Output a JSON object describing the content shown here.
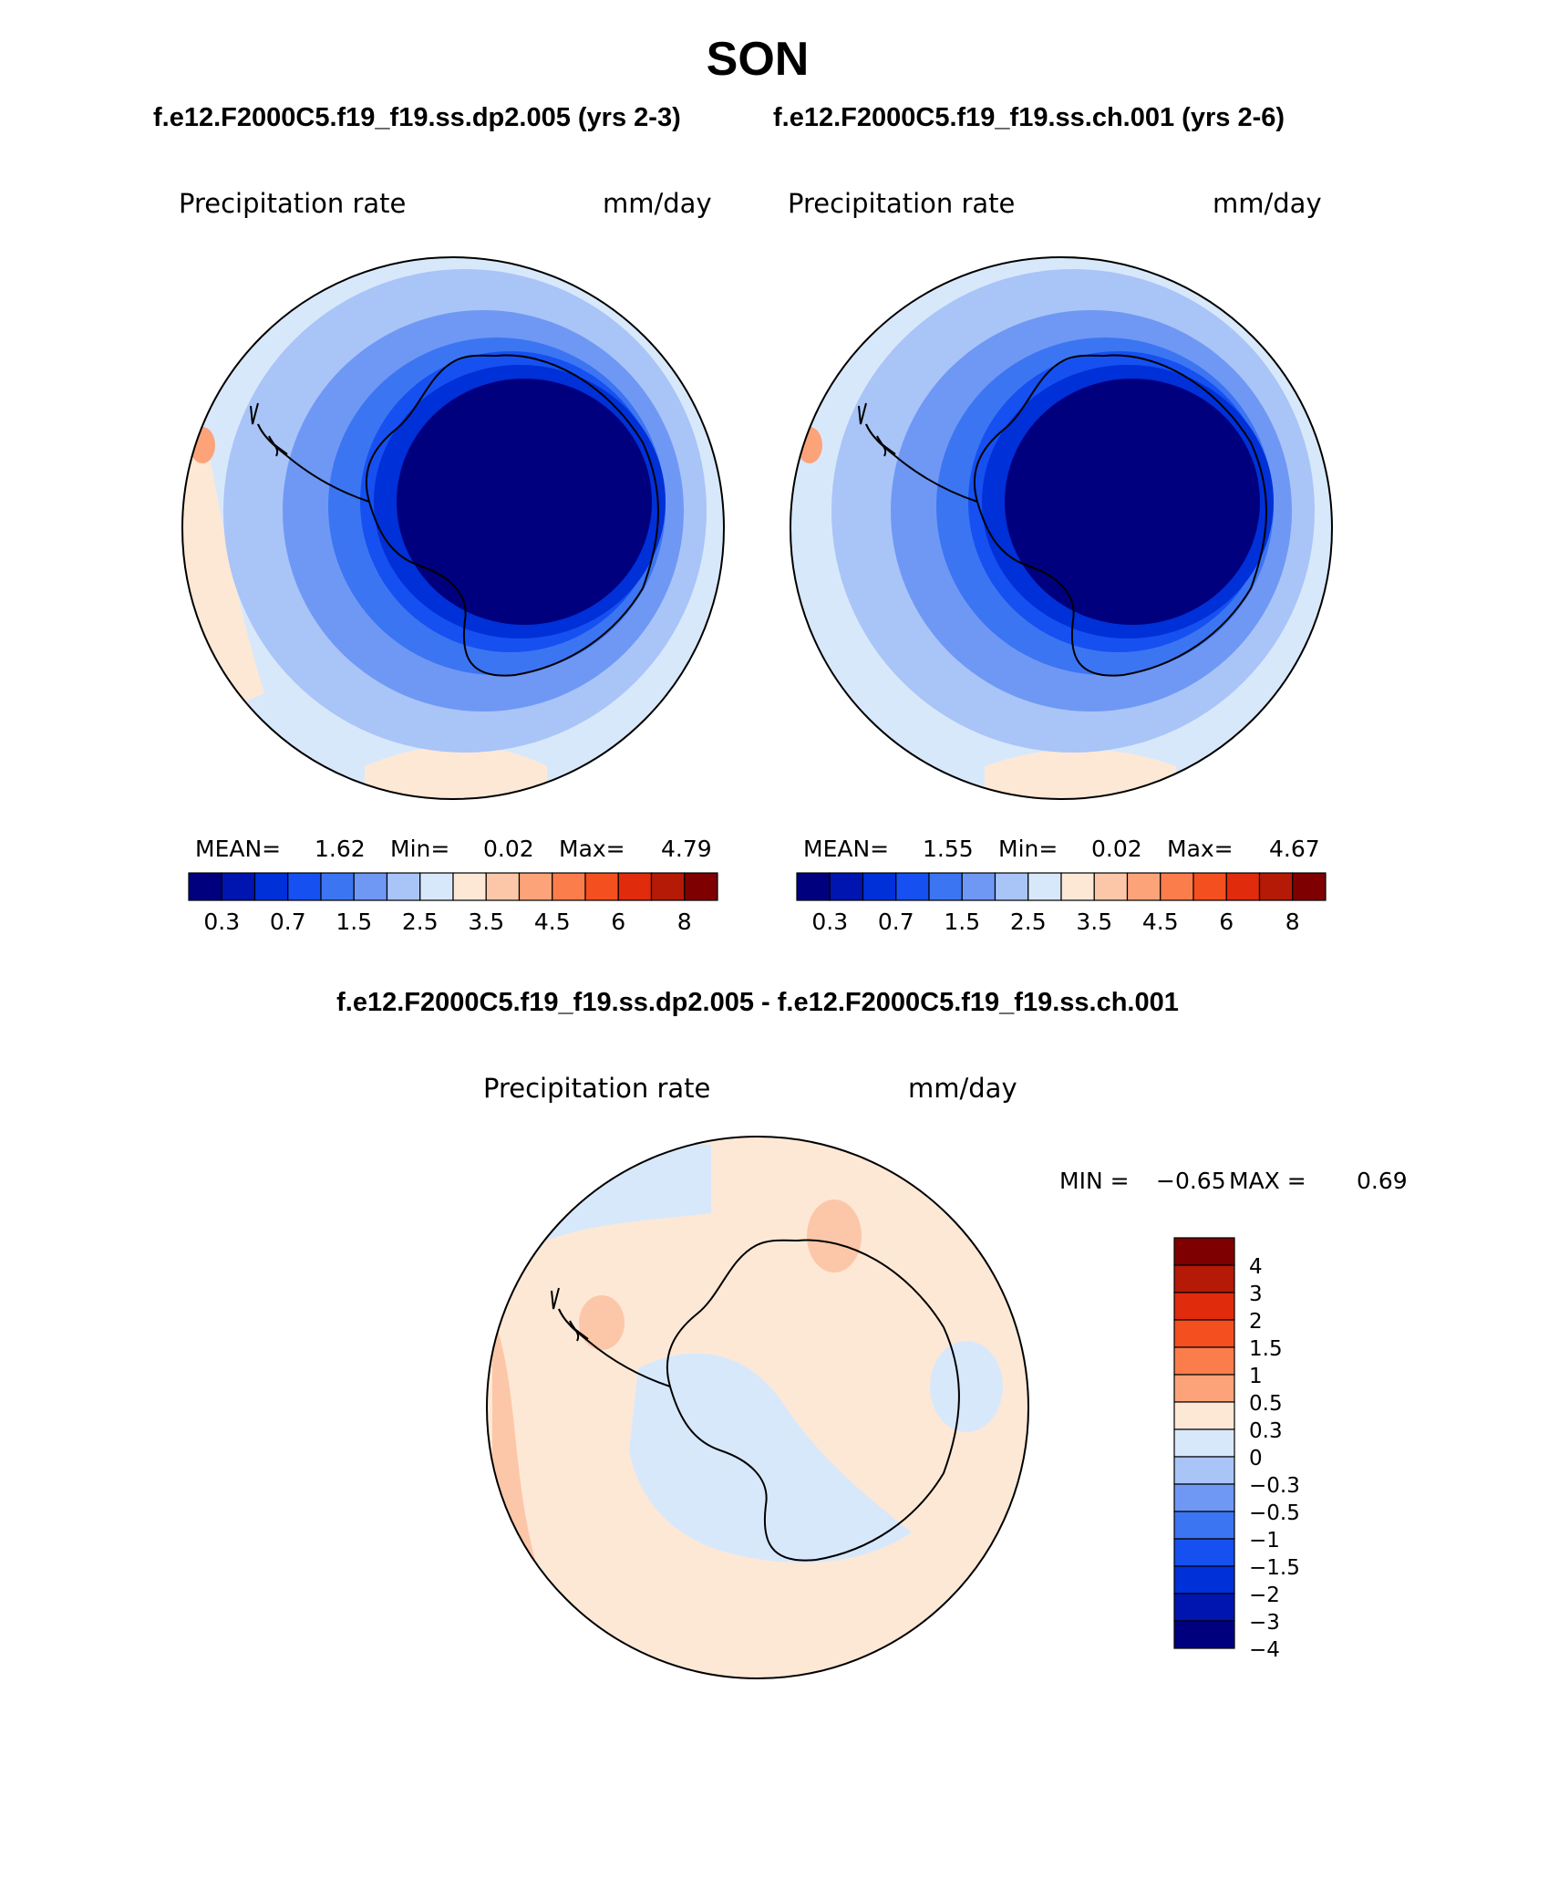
{
  "season": "SON",
  "case1_title": "f.e12.F2000C5.f19_f19.ss.dp2.005 (yrs 2-3)",
  "case2_title": "f.e12.F2000C5.f19_f19.ss.ch.001 (yrs 2-6)",
  "diff_title": "f.e12.F2000C5.f19_f19.ss.dp2.005 - f.e12.F2000C5.f19_f19.ss.ch.001",
  "panels": [
    {
      "variable": "Precipitation rate",
      "units": "mm/day",
      "mean_label": "MEAN=",
      "mean": "1.62",
      "min_label": "Min=",
      "min": "0.02",
      "max_label": "Max=",
      "max": "4.79"
    },
    {
      "variable": "Precipitation rate",
      "units": "mm/day",
      "mean_label": "MEAN=",
      "mean": "1.55",
      "min_label": "Min=",
      "min": "0.02",
      "max_label": "Max=",
      "max": "4.67"
    }
  ],
  "diff_panel": {
    "variable": "Precipitation rate",
    "units": "mm/day",
    "min_label": "MIN =",
    "min": "−0.65",
    "max_label": "MAX =",
    "max": "0.69"
  },
  "abs_colorbar": {
    "colors": [
      "#00007f",
      "#0015b0",
      "#0030d8",
      "#1650f0",
      "#3c75f2",
      "#6f98f5",
      "#a9c4f7",
      "#d8e8fb",
      "#fde8d6",
      "#fcc7a8",
      "#fca37a",
      "#fb7d4c",
      "#f44f1f",
      "#e02b0c",
      "#b51a06",
      "#7f0000"
    ],
    "tick_labels": [
      "0.3",
      "0.7",
      "1.5",
      "2.5",
      "3.5",
      "4.5",
      "6",
      "8"
    ]
  },
  "diff_colorbar": {
    "colors": [
      "#7f0000",
      "#b51a06",
      "#e02b0c",
      "#f44f1f",
      "#fb7d4c",
      "#fca37a",
      "#fde8d6",
      "#d8e8fb",
      "#a9c4f7",
      "#6f98f5",
      "#3c75f2",
      "#1650f0",
      "#0030d8",
      "#0015b0",
      "#00007f"
    ],
    "tick_labels": [
      "4",
      "3",
      "2",
      "1.5",
      "1",
      "0.5",
      "0.3",
      "0",
      "−0.3",
      "−0.5",
      "−1",
      "−1.5",
      "−2",
      "−3",
      "−4"
    ]
  },
  "map_colors": {
    "ocean_light": "#d8e8fb",
    "ocean_mid": "#a9c4f7",
    "ring_1": "#6f98f5",
    "ring_2": "#3c75f2",
    "ring_3": "#1650f0",
    "ring_4": "#0030d8",
    "interior": "#00007f",
    "warm_1": "#fde8d6",
    "warm_2": "#fcc7a8",
    "warm_3": "#fca37a",
    "diff_base": "#fde8d6",
    "diff_cool": "#d8e8fb",
    "diff_warm": "#fcc7a8"
  }
}
